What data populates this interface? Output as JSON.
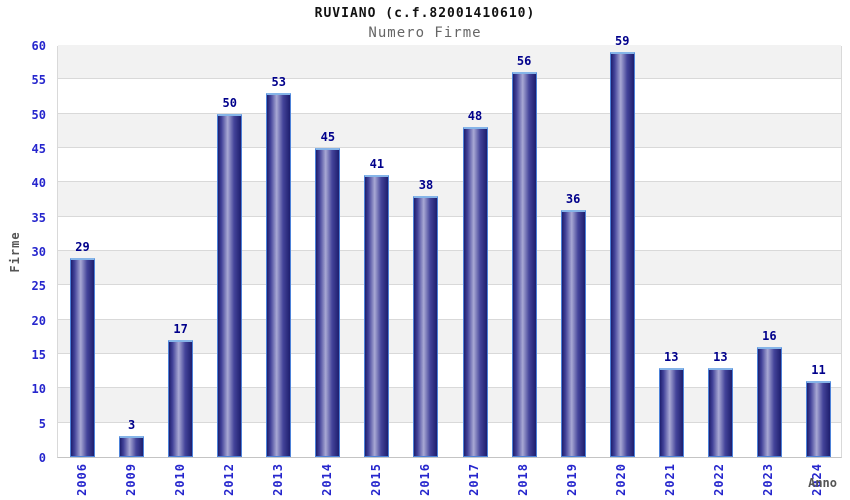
{
  "chart_data": {
    "type": "bar",
    "title": "RUVIANO (c.f.82001410610)",
    "subtitle": "Numero Firme",
    "xlabel": "Anno",
    "ylabel": "Firme",
    "categories": [
      "2006",
      "2009",
      "2010",
      "2012",
      "2013",
      "2014",
      "2015",
      "2016",
      "2017",
      "2018",
      "2019",
      "2020",
      "2021",
      "2022",
      "2023",
      "2024"
    ],
    "values": [
      29,
      3,
      17,
      50,
      53,
      45,
      41,
      38,
      48,
      56,
      36,
      59,
      13,
      13,
      16,
      11
    ],
    "ylim": [
      0,
      60
    ],
    "ytick_step": 5,
    "yticks": [
      0,
      5,
      10,
      15,
      20,
      25,
      30,
      35,
      40,
      45,
      50,
      55,
      60
    ],
    "grid": true,
    "band_alternating": true,
    "legend": "none",
    "value_labels_shown": true,
    "colors": {
      "bar_dark": "#1e1e6e",
      "bar_mid": "#44449a",
      "bar_light": "#a8a8d4",
      "bar_border": "#4d82d9",
      "bar_cap": "#85b4e8",
      "tick_label": "#2626cd",
      "value_label": "#00008b",
      "axis_label": "#555555",
      "band_gray": "#f2f2f2",
      "band_white": "#ffffff",
      "grid_line": "#d9d9d9",
      "axis_line": "#c4c4c4",
      "title": "#111111",
      "subtitle": "#666666",
      "background": "#ffffff"
    }
  }
}
